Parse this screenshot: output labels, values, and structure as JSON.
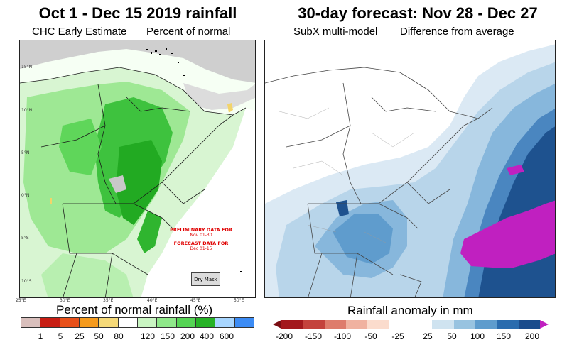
{
  "left_panel": {
    "title": "Oct 1 - Dec 15 2019 rainfall",
    "subtitle_left": "CHC Early Estimate",
    "subtitle_right": "Percent of normal",
    "lat_labels": [
      "15°N",
      "10°N",
      "5°N",
      "0°N",
      "5°S",
      "10°S"
    ],
    "lon_labels": [
      "25°E",
      "30°E",
      "35°E",
      "40°E",
      "45°E",
      "50°E"
    ],
    "notice_line1": "PRELIMINARY DATA FOR",
    "notice_line2": "Nov 01-30",
    "notice_line3": "FORECAST DATA FOR",
    "notice_line4": "Dec 01-15",
    "dry_mask_label": "Dry Mask",
    "legend": {
      "title": "Percent of normal rainfall (%)",
      "colors": [
        "#d9bfbc",
        "#c81e14",
        "#e8501a",
        "#f59a1c",
        "#f5d978",
        "#ffffff",
        "#c9f5c2",
        "#8fe88a",
        "#55d454",
        "#26b226",
        "#a8d6ff",
        "#3c8cf5"
      ],
      "labels": [
        "1",
        "5",
        "25",
        "50",
        "80",
        "120",
        "150",
        "200",
        "400",
        "600"
      ]
    }
  },
  "right_panel": {
    "title": "30-day forecast: Nov 28 - Dec 27",
    "subtitle_left": "SubX multi-model",
    "subtitle_right": "Difference from average",
    "legend": {
      "title": "Rainfall anomaly in mm",
      "colors": [
        "#a3181c",
        "#c4423c",
        "#de7c6c",
        "#f0b2a0",
        "#fbdccd",
        "#ffffff",
        "#ffffff",
        "#cfe3f0",
        "#98c3e0",
        "#5e9ccd",
        "#2a6cae",
        "#1a4c8c"
      ],
      "end_low_color": "#7a0d12",
      "end_high_color": "#c020c0",
      "labels": [
        "-200",
        "-150",
        "-100",
        "-50",
        "-25",
        "25",
        "50",
        "100",
        "150",
        "200"
      ]
    }
  }
}
